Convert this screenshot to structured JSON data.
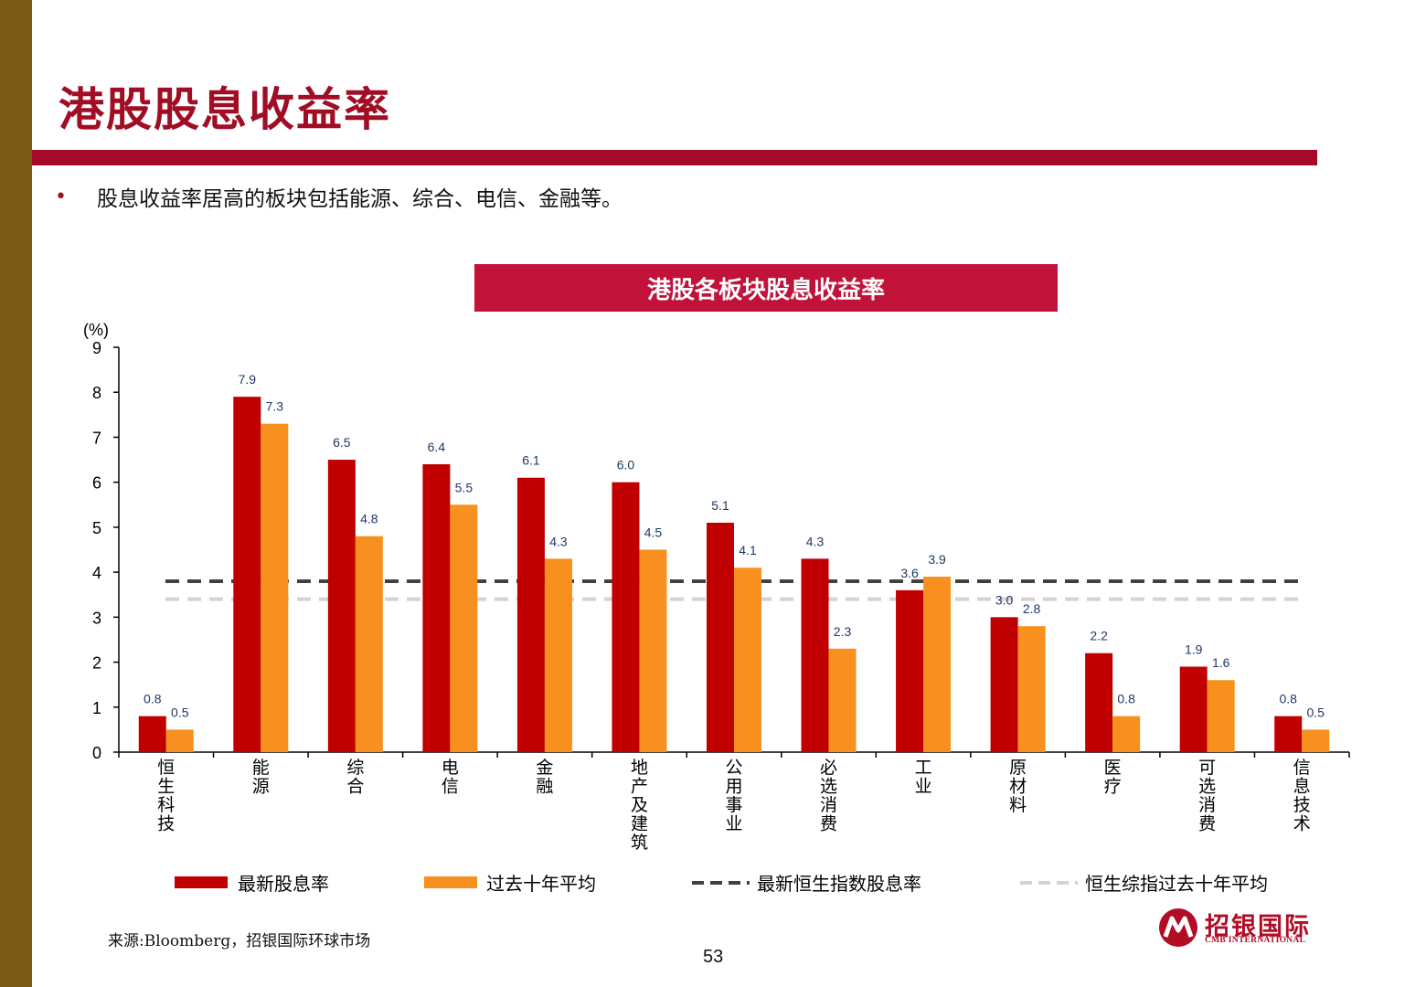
{
  "page": {
    "title": "港股股息收益率",
    "bullet": "股息收益率居高的板块包括能源、综合、电信、金融等。",
    "source": "来源:Bloomberg，招银国际环球市场",
    "page_number": "53",
    "logo": {
      "cn": "招银国际",
      "en": "CMB INTERNATIONAL"
    },
    "colors": {
      "brand": "#a00d25",
      "banner": "#c1123a",
      "sidebar": "#7a5b18"
    }
  },
  "chart_data": {
    "type": "bar",
    "title": "港股各板块股息收益率",
    "unit_label": "(%)",
    "ylim": [
      0,
      9
    ],
    "yticks": [
      0,
      1,
      2,
      3,
      4,
      5,
      6,
      7,
      8,
      9
    ],
    "grid": false,
    "legend_position": "bottom",
    "categories": [
      "恒生科技",
      "能源",
      "综合",
      "电信",
      "金融",
      "地产及建筑",
      "公用事业",
      "必选消费",
      "工业",
      "原材料",
      "医疗",
      "可选消费",
      "信息技术"
    ],
    "series": [
      {
        "name": "最新股息率",
        "color": "#c00000",
        "values": [
          0.8,
          7.9,
          6.5,
          6.4,
          6.1,
          6.0,
          5.1,
          4.3,
          3.6,
          3.0,
          2.2,
          1.9,
          0.8
        ]
      },
      {
        "name": "过去十年平均",
        "color": "#f7901e",
        "values": [
          0.5,
          7.3,
          4.8,
          5.5,
          4.3,
          4.5,
          4.1,
          2.3,
          3.9,
          2.8,
          0.8,
          1.6,
          0.5
        ]
      }
    ],
    "reference_lines": [
      {
        "name": "最新恒生指数股息率",
        "value": 3.8,
        "color": "#404040",
        "style": "dashed"
      },
      {
        "name": "恒生综指过去十年平均",
        "value": 3.4,
        "color": "#d3d3d3",
        "style": "dashed"
      }
    ]
  }
}
